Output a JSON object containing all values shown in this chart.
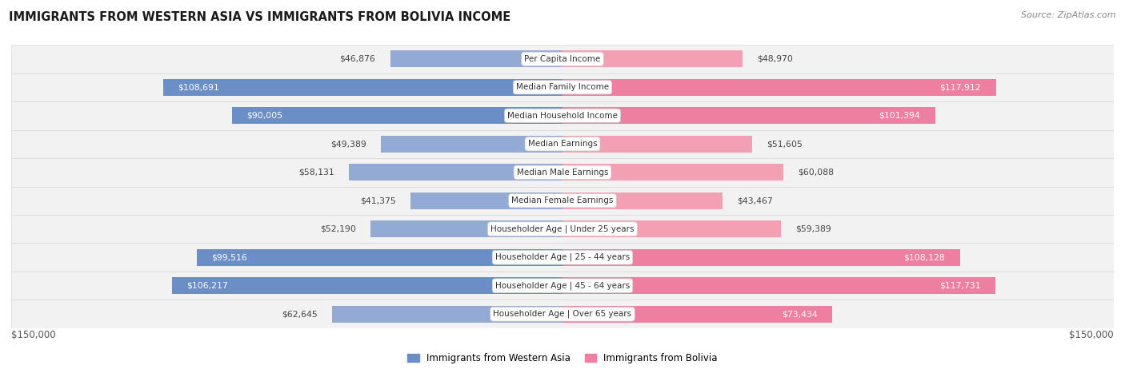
{
  "title": "IMMIGRANTS FROM WESTERN ASIA VS IMMIGRANTS FROM BOLIVIA INCOME",
  "source": "Source: ZipAtlas.com",
  "categories": [
    "Per Capita Income",
    "Median Family Income",
    "Median Household Income",
    "Median Earnings",
    "Median Male Earnings",
    "Median Female Earnings",
    "Householder Age | Under 25 years",
    "Householder Age | 25 - 44 years",
    "Householder Age | 45 - 64 years",
    "Householder Age | Over 65 years"
  ],
  "western_asia": [
    46876,
    108691,
    90005,
    49389,
    58131,
    41375,
    52190,
    99516,
    106217,
    62645
  ],
  "bolivia": [
    48970,
    117912,
    101394,
    51605,
    60088,
    43467,
    59389,
    108128,
    117731,
    73434
  ],
  "max_val": 150000,
  "color_western": "#92AAD4",
  "color_bolivia": "#F3A0B5",
  "color_western_strong": "#6B8EC6",
  "color_bolivia_strong": "#EE7FA0",
  "bar_height": 0.6,
  "row_bg_color": "#f2f2f2",
  "row_border_color": "#d8d8d8",
  "x_label_left": "$150,000",
  "x_label_right": "$150,000"
}
